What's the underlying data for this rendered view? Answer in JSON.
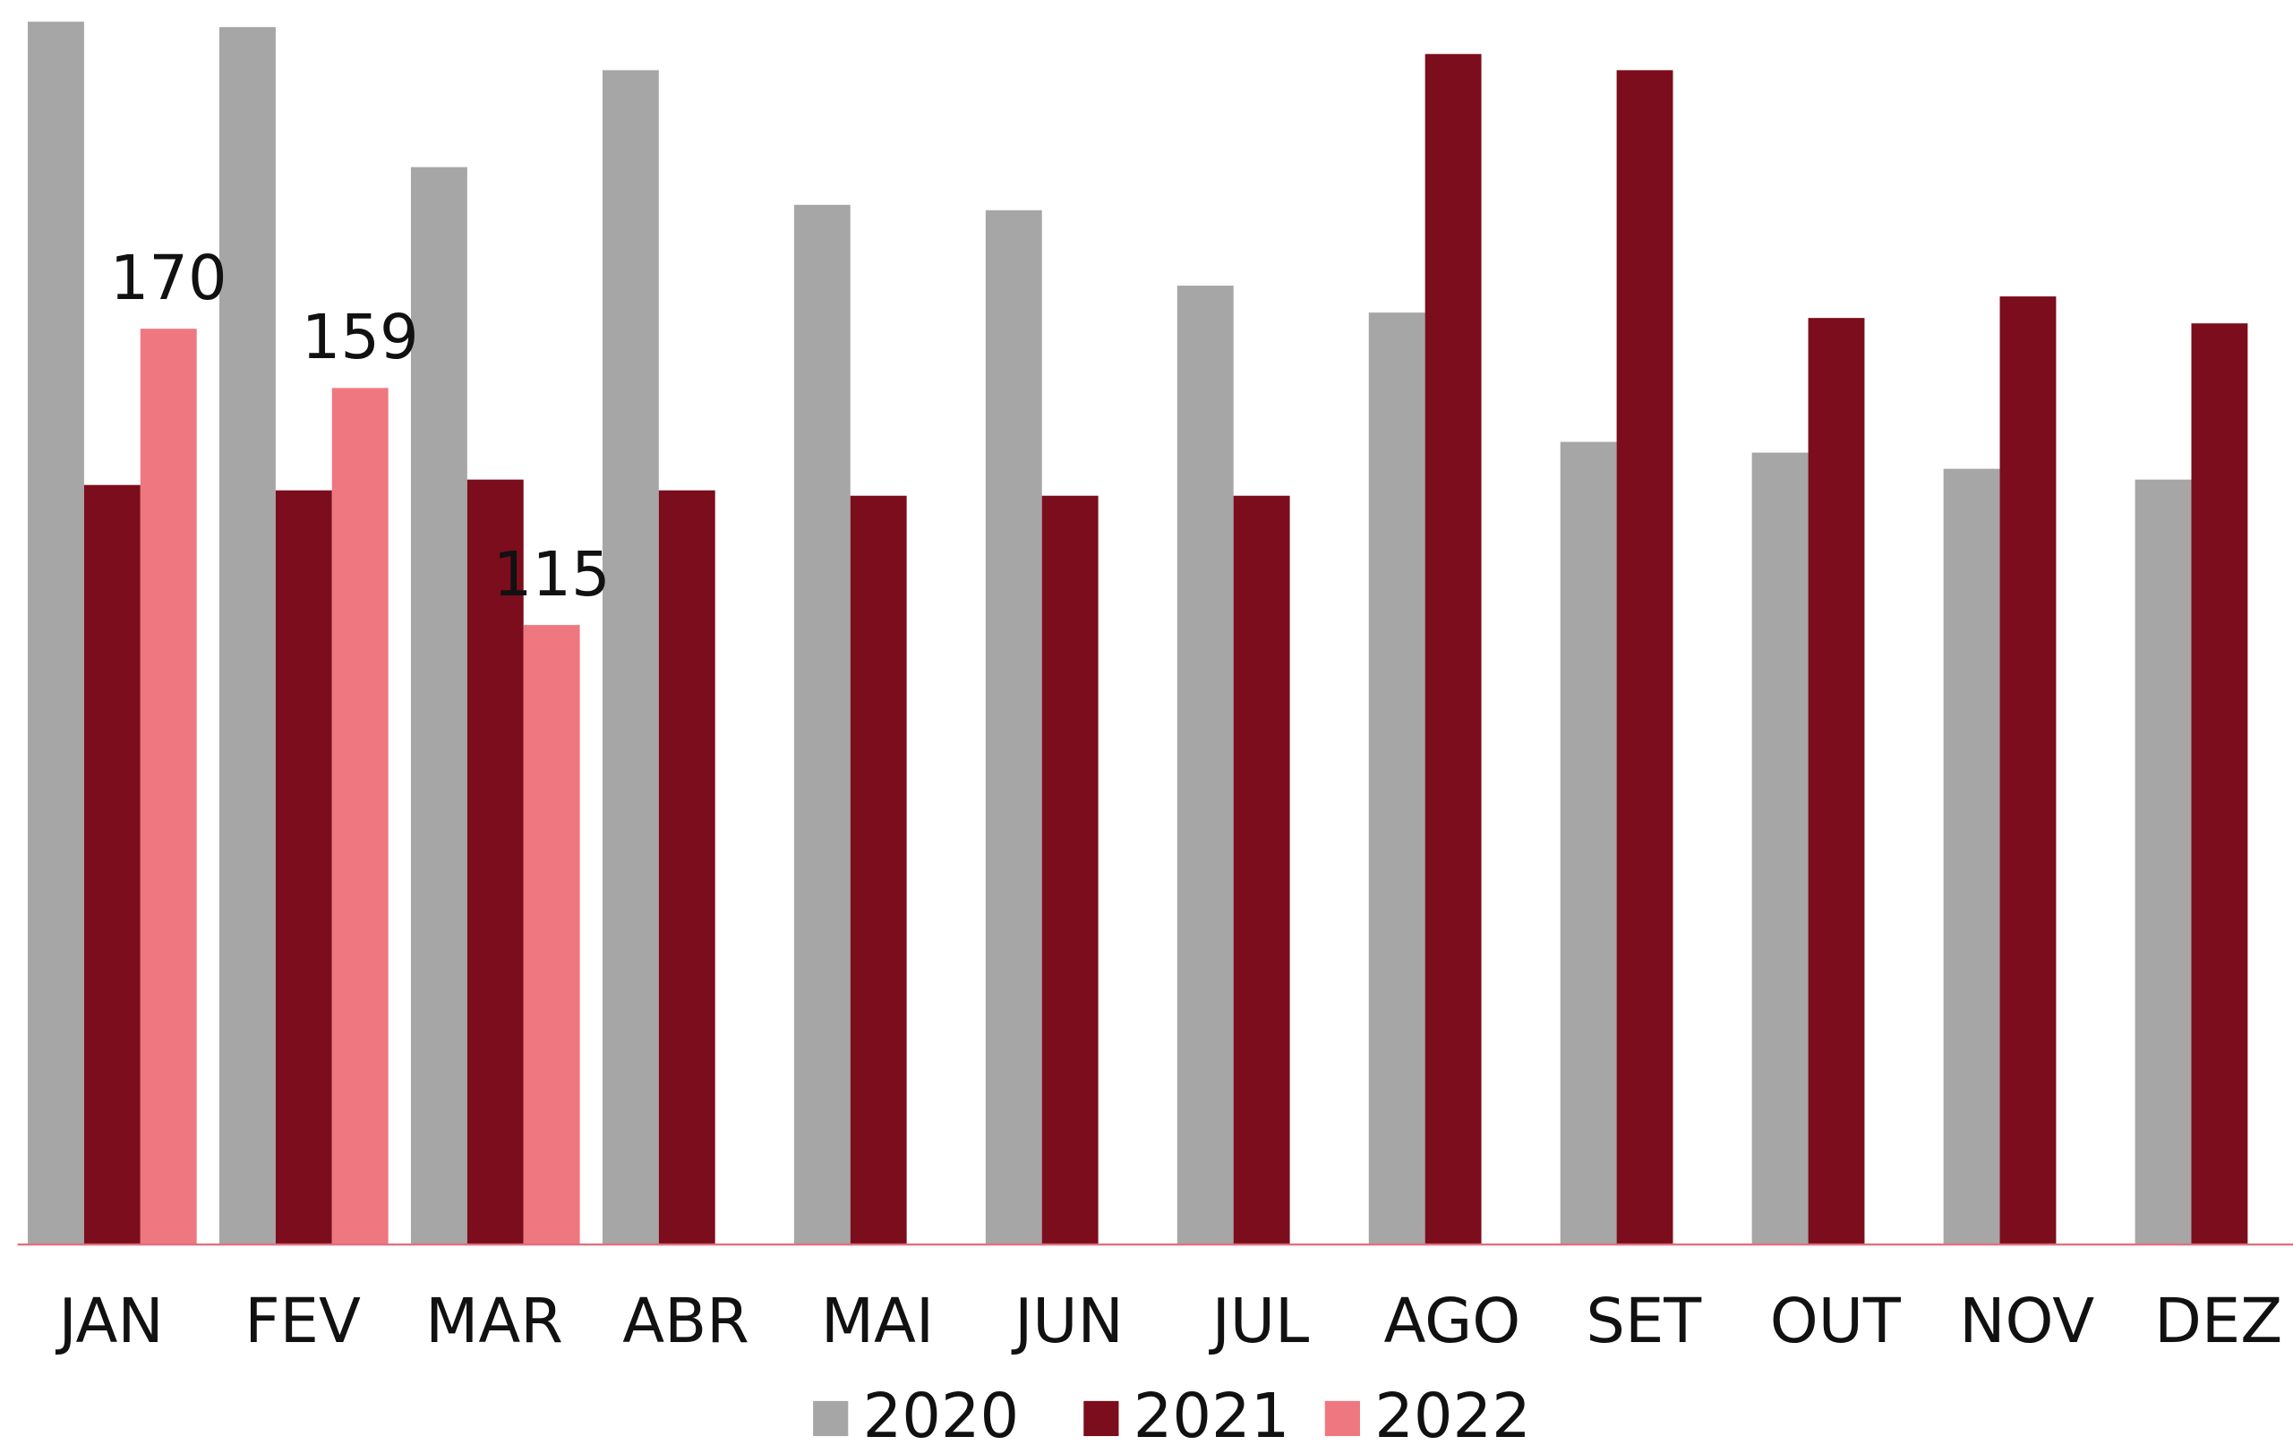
{
  "chart_data": {
    "type": "bar",
    "categories": [
      "JAN",
      "FEV",
      "MAR",
      "ABR",
      "MAI",
      "JUN",
      "JUL",
      "AGO",
      "SET",
      "OUT",
      "NOV",
      "DEZ"
    ],
    "series": [
      {
        "name": "2020",
        "color": "#a6a6a6",
        "values": [
          227,
          226,
          200,
          218,
          193,
          192,
          178,
          173,
          149,
          147,
          144,
          142
        ]
      },
      {
        "name": "2021",
        "color": "#7b0d1c",
        "values": [
          141,
          140,
          142,
          140,
          139,
          139,
          139,
          221,
          218,
          172,
          176,
          171
        ]
      },
      {
        "name": "2022",
        "color": "#ef7780",
        "values": [
          170,
          159,
          115,
          null,
          null,
          null,
          null,
          null,
          null,
          null,
          null,
          null
        ],
        "data_labels": true
      }
    ],
    "ylim": [
      0,
      231
    ],
    "legend": "bottom"
  }
}
